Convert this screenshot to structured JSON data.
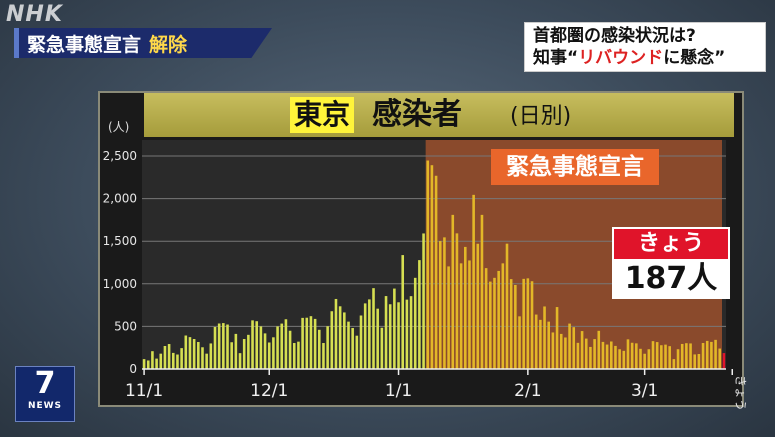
{
  "broadcaster": "NHK",
  "banner": {
    "main": "緊急事態宣言",
    "accent": "解除"
  },
  "topic": {
    "line1": "首都圏の感染状況は?",
    "line2_prefix": "知事“",
    "line2_red": "リバウンド",
    "line2_suffix": "に懸念”"
  },
  "chart_title": {
    "place": "東京",
    "main": "感染者",
    "sub": "(日別)"
  },
  "emergency_label": "緊急事態宣言",
  "today": {
    "label": "きょう",
    "value": "187人"
  },
  "logo": {
    "number": "7",
    "text": "NEWS"
  },
  "colors": {
    "pre_bar": "#d6df52",
    "emergency_bar": "#e3b728",
    "emergency_bg": "#8a4a2c",
    "today_bar": "#e0142a"
  },
  "chart_data": {
    "type": "bar",
    "ylabel": "(人)",
    "ylim": [
      0,
      2600
    ],
    "yticks": [
      0,
      500,
      1000,
      1500,
      2000,
      2500
    ],
    "ytick_labels": [
      "0",
      "500",
      "1,000",
      "1,500",
      "2,000",
      "2,500"
    ],
    "xtick_labels": [
      "11/1",
      "12/1",
      "1/1",
      "2/1",
      "3/1",
      "きょう"
    ],
    "xtick_index": [
      0,
      30,
      61,
      92,
      120,
      141
    ],
    "emergency_start_index": 68,
    "today_value": 187,
    "values": [
      116,
      100,
      209,
      122,
      180,
      270,
      293,
      189,
      170,
      245,
      393,
      374,
      352,
      317,
      255,
      180,
      300,
      493,
      534,
      539,
      522,
      314,
      412,
      186,
      352,
      401,
      571,
      561,
      500,
      418,
      311,
      372,
      500,
      533,
      584,
      449,
      305,
      321,
      600,
      602,
      620,
      588,
      460,
      305,
      502,
      678,
      822,
      736,
      664,
      556,
      481,
      391,
      628,
      770,
      817,
      949,
      708,
      484,
      856,
      760,
      944,
      783,
      1337,
      814,
      855,
      1070,
      1278,
      1591,
      2447,
      2392,
      2268,
      1502,
      1545,
      1204,
      1809,
      1592,
      1240,
      1433,
      1274,
      2044,
      1470,
      1809,
      1184,
      1026,
      1070,
      1151,
      1240,
      1471,
      1055,
      986,
      618,
      1058,
      1064,
      1030,
      639,
      577,
      734,
      556,
      429,
      727,
      412,
      370,
      533,
      491,
      307,
      445,
      357,
      259,
      351,
      448,
      318,
      287,
      323,
      271,
      232,
      213,
      348,
      308,
      301,
      237,
      179,
      232,
      327,
      316,
      279,
      286,
      268,
      116,
      232,
      294,
      303,
      300,
      171,
      176,
      305,
      330,
      318,
      342,
      240,
      187
    ]
  }
}
